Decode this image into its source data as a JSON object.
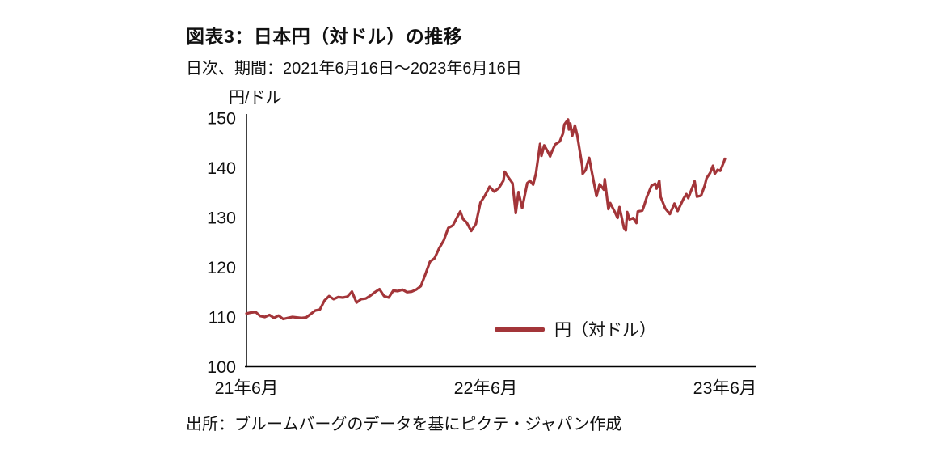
{
  "title": "図表3：日本円（対ドル）の推移",
  "subtitle": "日次、期間：2021年6月16日～2023年6月16日",
  "source": "出所：ブルームバーグのデータを基にピクテ・ジャパン作成",
  "chart_data": {
    "type": "line",
    "title": "図表3：日本円（対ドル）の推移",
    "subtitle": "日次、期間：2021年6月16日～2023年6月16日",
    "ylabel": "円/ドル",
    "unit_label": "円/ドル",
    "series_name": "円（対ドル）",
    "series_color": "#a33539",
    "axis_color": "#000000",
    "grid": false,
    "legend_position": "inside-lower-right",
    "ylim": [
      100,
      150
    ],
    "yticks": [
      100,
      110,
      120,
      130,
      140,
      150
    ],
    "x_unit": "weeks since 2021-06-16",
    "xticks": [
      {
        "label": "21年6月",
        "t": 0
      },
      {
        "label": "22年6月",
        "t": 52.15
      },
      {
        "label": "23年6月",
        "t": 104.3
      }
    ],
    "points": [
      [
        0,
        110.7
      ],
      [
        1,
        110.9
      ],
      [
        2,
        111.0
      ],
      [
        3,
        110.2
      ],
      [
        4,
        110.0
      ],
      [
        5,
        110.4
      ],
      [
        6,
        109.8
      ],
      [
        7,
        110.3
      ],
      [
        8,
        109.6
      ],
      [
        9,
        109.8
      ],
      [
        10,
        110.0
      ],
      [
        11,
        109.9
      ],
      [
        12,
        109.8
      ],
      [
        13,
        109.9
      ],
      [
        14,
        110.6
      ],
      [
        15,
        111.3
      ],
      [
        16,
        111.5
      ],
      [
        17,
        113.3
      ],
      [
        18,
        114.2
      ],
      [
        19,
        113.6
      ],
      [
        20,
        114.0
      ],
      [
        21,
        113.9
      ],
      [
        22,
        114.1
      ],
      [
        23,
        115.1
      ],
      [
        24,
        112.9
      ],
      [
        25,
        113.6
      ],
      [
        26,
        113.7
      ],
      [
        27,
        114.3
      ],
      [
        28,
        115.0
      ],
      [
        29,
        115.6
      ],
      [
        30,
        114.2
      ],
      [
        31,
        113.9
      ],
      [
        32,
        115.3
      ],
      [
        33,
        115.2
      ],
      [
        34,
        115.5
      ],
      [
        35,
        115.0
      ],
      [
        36,
        115.1
      ],
      [
        37,
        115.5
      ],
      [
        38,
        116.2
      ],
      [
        39,
        118.6
      ],
      [
        40,
        121.1
      ],
      [
        41,
        121.8
      ],
      [
        42,
        123.8
      ],
      [
        43,
        125.4
      ],
      [
        44,
        127.9
      ],
      [
        45,
        128.4
      ],
      [
        46,
        130.2
      ],
      [
        46.6,
        131.2
      ],
      [
        47.2,
        129.7
      ],
      [
        48,
        129.0
      ],
      [
        49,
        127.3
      ],
      [
        50,
        128.7
      ],
      [
        51,
        133.0
      ],
      [
        52,
        134.4
      ],
      [
        53,
        136.2
      ],
      [
        54,
        135.2
      ],
      [
        55,
        135.9
      ],
      [
        56,
        137.4
      ],
      [
        56.3,
        139.2
      ],
      [
        57,
        138.2
      ],
      [
        58,
        136.9
      ],
      [
        58.7,
        130.9
      ],
      [
        59.3,
        135.1
      ],
      [
        60.1,
        131.9
      ],
      [
        61.2,
        136.9
      ],
      [
        61.8,
        137.4
      ],
      [
        62.5,
        136.6
      ],
      [
        63.1,
        138.9
      ],
      [
        63.3,
        140.2
      ],
      [
        64,
        144.8
      ],
      [
        64.3,
        142.4
      ],
      [
        64.9,
        144.5
      ],
      [
        65.6,
        143.4
      ],
      [
        66.2,
        142.3
      ],
      [
        66.6,
        143.3
      ],
      [
        67.3,
        144.7
      ],
      [
        68.3,
        145.3
      ],
      [
        69,
        146.9
      ],
      [
        69.3,
        148.7
      ],
      [
        70.1,
        149.7
      ],
      [
        70.3,
        147.7
      ],
      [
        70.6,
        148.9
      ],
      [
        71,
        146.4
      ],
      [
        71.6,
        148.5
      ],
      [
        72.1,
        146.6
      ],
      [
        73.2,
        140.3
      ],
      [
        73.3,
        138.8
      ],
      [
        73.9,
        139.5
      ],
      [
        74.7,
        142.0
      ],
      [
        75.3,
        139.1
      ],
      [
        76.3,
        134.3
      ],
      [
        77,
        136.7
      ],
      [
        77.9,
        135.6
      ],
      [
        78.1,
        137.7
      ],
      [
        78.9,
        131.7
      ],
      [
        79.3,
        132.9
      ],
      [
        80.3,
        131.1
      ],
      [
        80.9,
        129.9
      ],
      [
        81.3,
        132.1
      ],
      [
        82.3,
        127.9
      ],
      [
        82.7,
        127.4
      ],
      [
        83,
        131.1
      ],
      [
        83.5,
        129.6
      ],
      [
        84.3,
        129.9
      ],
      [
        85,
        128.9
      ],
      [
        85.3,
        131.2
      ],
      [
        86.3,
        131.4
      ],
      [
        86.7,
        132.4
      ],
      [
        87.3,
        134.2
      ],
      [
        88.3,
        136.4
      ],
      [
        89.1,
        136.8
      ],
      [
        89.4,
        135.8
      ],
      [
        90,
        137.4
      ],
      [
        90.3,
        134.1
      ],
      [
        90.7,
        133.2
      ],
      [
        91.3,
        131.8
      ],
      [
        92.3,
        130.7
      ],
      [
        93.3,
        132.8
      ],
      [
        94,
        131.3
      ],
      [
        95.3,
        133.8
      ],
      [
        95.9,
        134.7
      ],
      [
        96.3,
        133.9
      ],
      [
        97.3,
        136.3
      ],
      [
        97.7,
        137.3
      ],
      [
        98.2,
        134.2
      ],
      [
        99.1,
        134.4
      ],
      [
        99.9,
        136.4
      ],
      [
        100.3,
        137.9
      ],
      [
        101.1,
        139.0
      ],
      [
        101.7,
        140.4
      ],
      [
        102.1,
        138.8
      ],
      [
        102.7,
        139.6
      ],
      [
        103.3,
        139.4
      ],
      [
        104,
        141.0
      ],
      [
        104.3,
        141.8
      ]
    ]
  }
}
